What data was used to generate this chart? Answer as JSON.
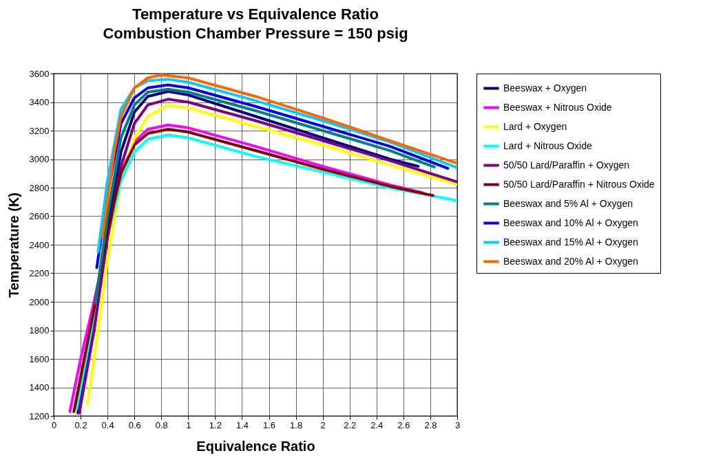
{
  "chart_data": {
    "type": "line",
    "title": "Temperature vs Equivalence Ratio",
    "subtitle": "Combustion Chamber Pressure = 150 psig",
    "xlabel": "Equivalence Ratio",
    "ylabel": "Temperature (K)",
    "xlim": [
      0,
      3
    ],
    "xticks": [
      0,
      0.2,
      0.4,
      0.6,
      0.8,
      1,
      1.2,
      1.4,
      1.6,
      1.8,
      2,
      2.2,
      2.4,
      2.6,
      2.8,
      3
    ],
    "ylim": [
      1200,
      3600
    ],
    "yticks": [
      1200,
      1400,
      1600,
      1800,
      2000,
      2200,
      2400,
      2600,
      2800,
      3000,
      3200,
      3400,
      3600
    ],
    "grid": true,
    "legend": "right",
    "marker": "none",
    "line_style": "solid",
    "series": [
      {
        "name": "Beeswax + Oxygen",
        "color": "#000080",
        "x": [
          0.18,
          0.2,
          0.3,
          0.4,
          0.5,
          0.6,
          0.7,
          0.85,
          1.0,
          1.5,
          2.0,
          2.5,
          2.71
        ],
        "values": [
          1220,
          1350,
          1800,
          2500,
          3050,
          3330,
          3440,
          3475,
          3450,
          3300,
          3150,
          3000,
          2950
        ]
      },
      {
        "name": "Beeswax + Nitrous Oxide",
        "color": "#ff00ff",
        "x": [
          0.12,
          0.2,
          0.3,
          0.4,
          0.5,
          0.6,
          0.7,
          0.85,
          1.0,
          1.5,
          2.0,
          2.5,
          2.74
        ],
        "values": [
          1230,
          1600,
          2000,
          2450,
          2900,
          3120,
          3210,
          3240,
          3220,
          3090,
          2950,
          2820,
          2765
        ]
      },
      {
        "name": "Lard + Oxygen",
        "color": "#ffff00",
        "x": [
          0.25,
          0.3,
          0.4,
          0.5,
          0.6,
          0.7,
          0.85,
          1.0,
          1.5,
          2.0,
          2.5,
          3.0
        ],
        "values": [
          1280,
          1600,
          2300,
          2850,
          3150,
          3300,
          3380,
          3360,
          3230,
          3100,
          2960,
          2825
        ]
      },
      {
        "name": "Lard + Nitrous Oxide",
        "color": "#00ffff",
        "x": [
          0.17,
          0.3,
          0.4,
          0.5,
          0.6,
          0.7,
          0.85,
          1.0,
          1.5,
          2.0,
          2.5,
          3.0
        ],
        "values": [
          1250,
          1900,
          2450,
          2850,
          3050,
          3140,
          3170,
          3150,
          3020,
          2910,
          2800,
          2710
        ]
      },
      {
        "name": "50/50 Lard/Paraffin + Oxygen",
        "color": "#800080",
        "x": [
          0.19,
          0.3,
          0.4,
          0.5,
          0.6,
          0.7,
          0.85,
          1.0,
          1.5,
          2.0,
          2.5,
          3.0
        ],
        "values": [
          1220,
          1800,
          2450,
          2950,
          3250,
          3380,
          3420,
          3400,
          3270,
          3130,
          2990,
          2840
        ]
      },
      {
        "name": "50/50 Lard/Paraffin + Nitrous Oxide",
        "color": "#800000",
        "x": [
          0.15,
          0.3,
          0.4,
          0.5,
          0.6,
          0.7,
          0.85,
          1.0,
          1.5,
          2.0,
          2.5,
          2.82
        ],
        "values": [
          1230,
          1950,
          2500,
          2900,
          3100,
          3180,
          3210,
          3190,
          3060,
          2930,
          2810,
          2745
        ]
      },
      {
        "name": "Beeswax and 5% Al + Oxygen",
        "color": "#008080",
        "x": [
          0.31,
          0.4,
          0.5,
          0.6,
          0.7,
          0.85,
          1.0,
          1.5,
          2.0,
          2.5,
          2.83
        ],
        "values": [
          1990,
          2600,
          3150,
          3380,
          3470,
          3490,
          3470,
          3340,
          3200,
          3060,
          2945
        ]
      },
      {
        "name": "Beeswax and 10% Al + Oxygen",
        "color": "#0000ff",
        "x": [
          0.32,
          0.4,
          0.5,
          0.6,
          0.7,
          0.85,
          1.0,
          1.5,
          2.0,
          2.5,
          2.93
        ],
        "values": [
          2240,
          2750,
          3250,
          3430,
          3500,
          3520,
          3500,
          3370,
          3230,
          3090,
          2935
        ]
      },
      {
        "name": "Beeswax and 15% Al + Oxygen",
        "color": "#00ccff",
        "x": [
          0.33,
          0.4,
          0.5,
          0.6,
          0.7,
          0.85,
          1.0,
          1.5,
          2.0,
          2.5,
          3.0
        ],
        "values": [
          2350,
          2850,
          3350,
          3500,
          3550,
          3560,
          3540,
          3410,
          3270,
          3120,
          2940
        ]
      },
      {
        "name": "Beeswax and 20% Al + Oxygen",
        "color": "#ff6600",
        "x": [
          0.36,
          0.45,
          0.5,
          0.6,
          0.7,
          0.8,
          1.0,
          1.5,
          2.0,
          2.5,
          3.0
        ],
        "values": [
          2450,
          3050,
          3300,
          3500,
          3570,
          3590,
          3570,
          3440,
          3290,
          3130,
          2970
        ]
      }
    ]
  }
}
